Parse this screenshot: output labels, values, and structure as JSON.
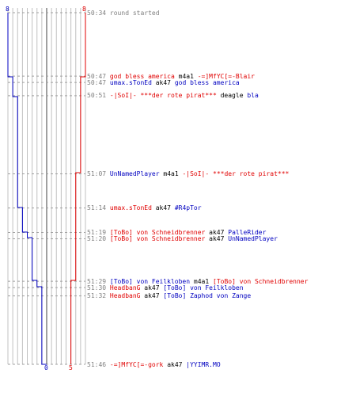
{
  "colors": {
    "red_team": "#e00000",
    "blue_team": "#0000c0",
    "grid": "#c0c0c0",
    "time": "#808080"
  },
  "counts": {
    "blue_start": "8",
    "red_start": "8",
    "blue_end": "0",
    "red_end": "5"
  },
  "events": [
    {
      "time": "50:34",
      "type": "info",
      "text": "round started"
    },
    {
      "time": "50:47",
      "type": "kill",
      "killer": "god bless america",
      "kteam": "red",
      "weapon": "m4a1",
      "victim": "-=]MfYC[=-Blair",
      "vteam": "red"
    },
    {
      "time": "50:47",
      "type": "kill",
      "killer": "umax.sTonEd",
      "kteam": "blue",
      "weapon": "ak47",
      "victim": "god bless america",
      "vteam": "blue"
    },
    {
      "time": "50:51",
      "type": "kill",
      "killer": "-|SoI|- ***der rote pirat***",
      "kteam": "red",
      "weapon": "deagle",
      "victim": "bla",
      "vteam": "blue"
    },
    {
      "time": "51:07",
      "type": "kill",
      "killer": "UnNamedPlayer",
      "kteam": "blue",
      "weapon": "m4a1",
      "victim": "-|SoI|- ***der rote pirat***",
      "vteam": "red"
    },
    {
      "time": "51:14",
      "type": "kill",
      "killer": "umax.sTonEd",
      "kteam": "red",
      "weapon": "ak47",
      "victim": "#R4pTor",
      "vteam": "blue"
    },
    {
      "time": "51:19",
      "type": "kill",
      "killer": "[ToBo] von Schneidbrenner",
      "kteam": "red",
      "weapon": "ak47",
      "victim": "PalleRider",
      "vteam": "blue"
    },
    {
      "time": "51:20",
      "type": "kill",
      "killer": "[ToBo] von Schneidbrenner",
      "kteam": "red",
      "weapon": "ak47",
      "victim": "UnNamedPlayer",
      "vteam": "blue"
    },
    {
      "time": "51:29",
      "type": "kill",
      "killer": "[ToBo] von Feilkloben",
      "kteam": "blue",
      "weapon": "m4a1",
      "victim": "[ToBo] von Schneidbrenner",
      "vteam": "red"
    },
    {
      "time": "51:30",
      "type": "kill",
      "killer": "HeadbanG",
      "kteam": "red",
      "weapon": "ak47",
      "victim": "[ToBo] von Feilkloben",
      "vteam": "blue"
    },
    {
      "time": "51:32",
      "type": "kill",
      "killer": "HeadbanG",
      "kteam": "red",
      "weapon": "ak47",
      "victim": "[ToBo] Zaphod von Zange",
      "vteam": "blue"
    },
    {
      "time": "51:46",
      "type": "kill",
      "killer": "-=]MfYC[=-gork",
      "kteam": "red",
      "weapon": "ak47",
      "victim": "|YYIMR.MO",
      "vteam": "blue"
    }
  ]
}
